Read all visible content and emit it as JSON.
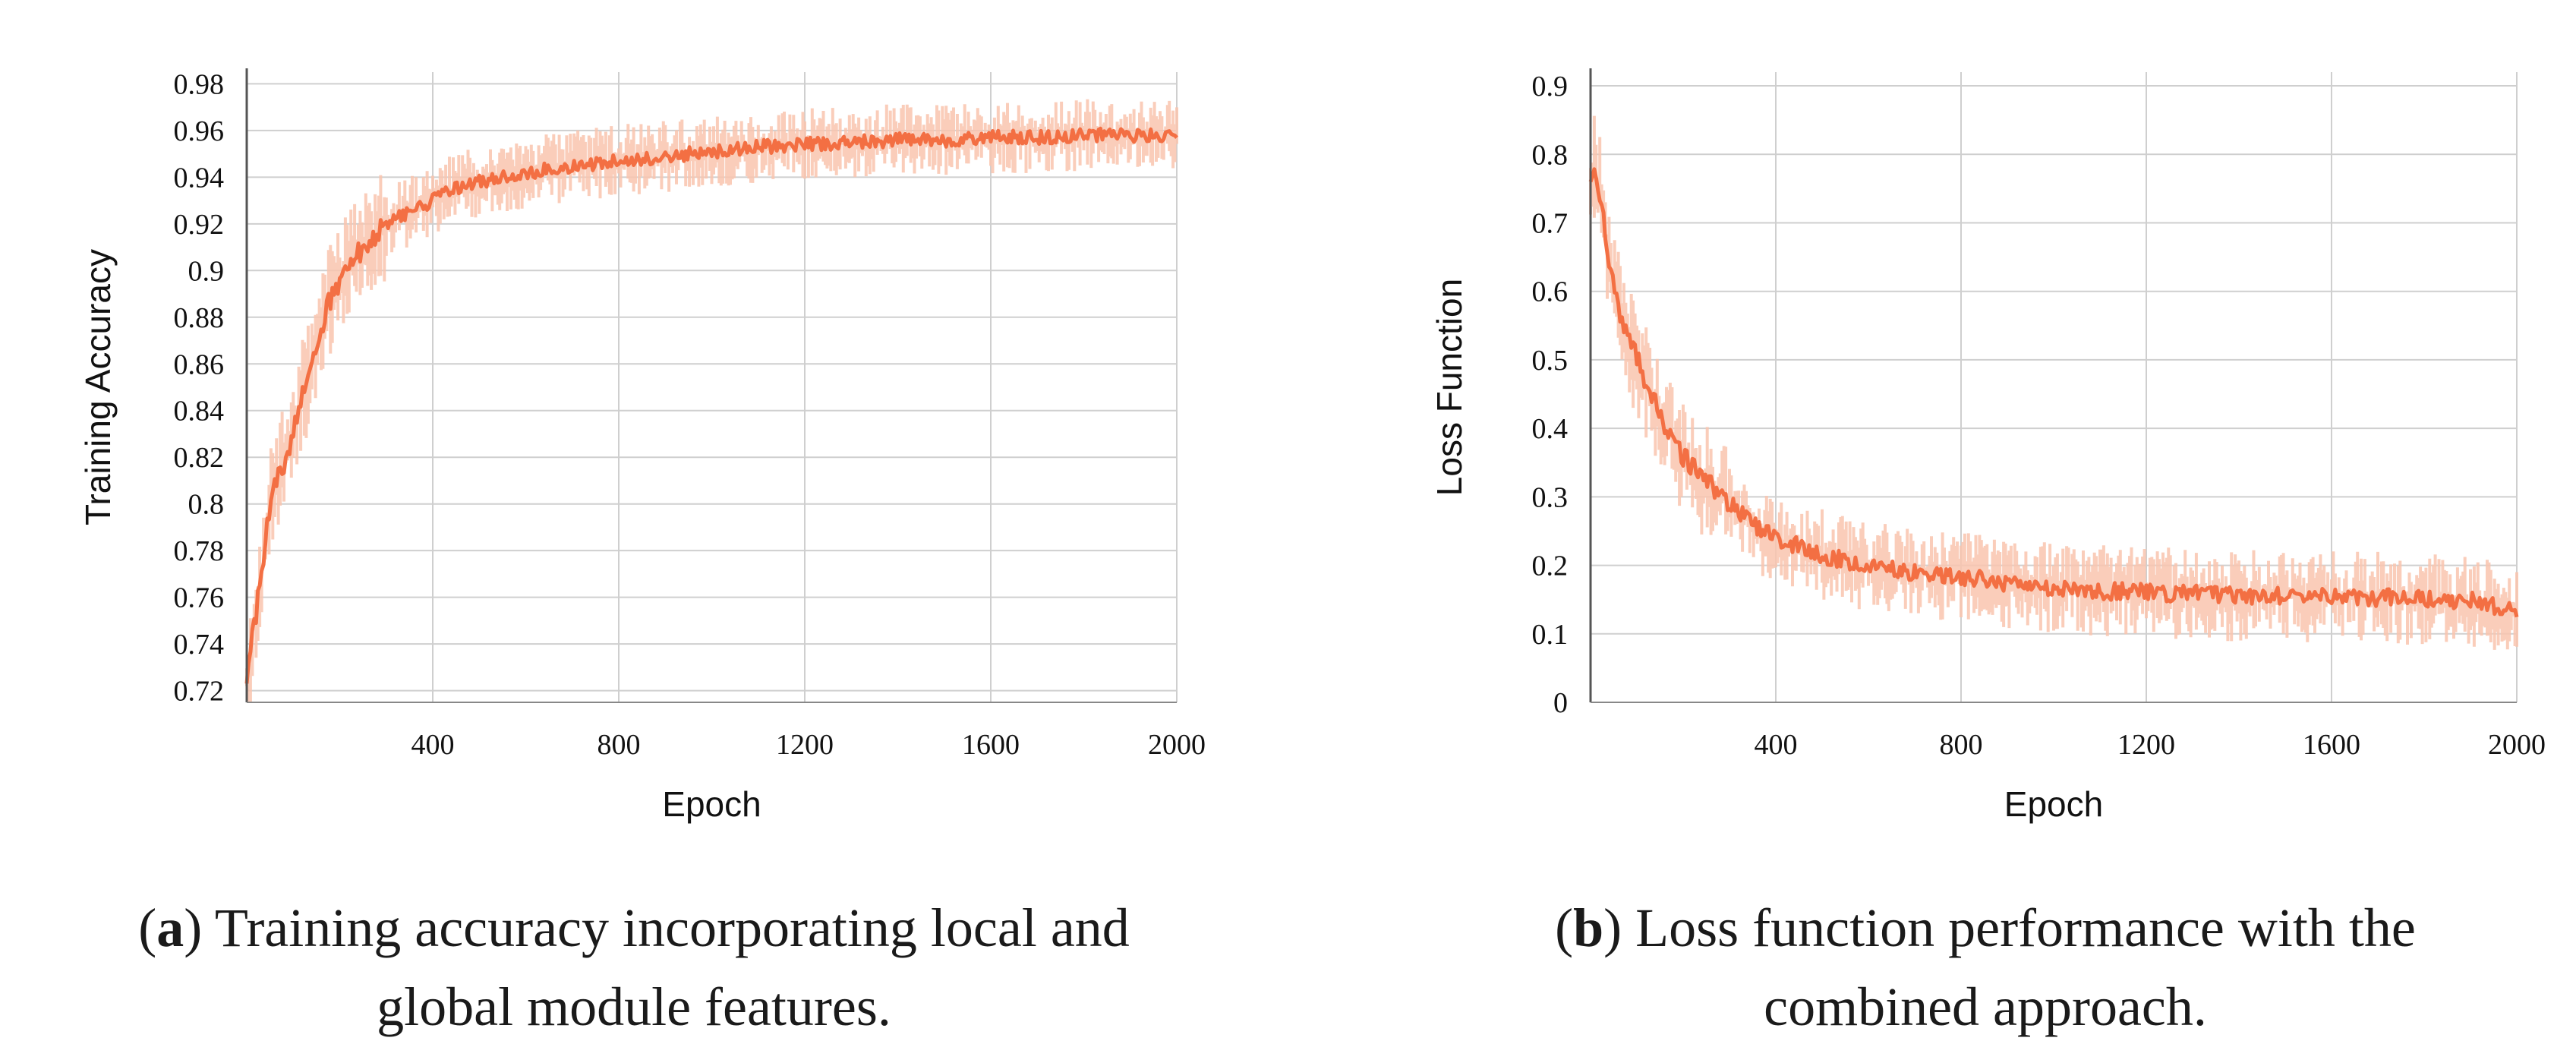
{
  "chart_data": [
    {
      "type": "line",
      "title": "",
      "xlabel": "Epoch",
      "ylabel": "Training Accuracy",
      "xlim": [
        0,
        2000
      ],
      "ylim": [
        0.715,
        0.985
      ],
      "grid": true,
      "line_color": "#f36f43",
      "band_color": "#f9c4ae",
      "x_ticks": [
        400,
        800,
        1200,
        1600,
        2000
      ],
      "x_tick_labels": [
        "400",
        "800",
        "1200",
        "1600",
        "2000"
      ],
      "y_ticks": [
        0.72,
        0.74,
        0.76,
        0.78,
        0.8,
        0.82,
        0.84,
        0.86,
        0.88,
        0.9,
        0.92,
        0.94,
        0.96,
        0.98
      ],
      "y_tick_labels": [
        "0.72",
        "0.74",
        "0.76",
        "0.78",
        "0.8",
        "0.82",
        "0.84",
        "0.86",
        "0.88",
        "0.9",
        "0.92",
        "0.94",
        "0.96",
        "0.98"
      ],
      "series": [
        {
          "name": "Training Accuracy",
          "x": [
            0,
            25,
            50,
            75,
            100,
            125,
            150,
            175,
            200,
            250,
            300,
            350,
            400,
            450,
            500,
            600,
            700,
            800,
            900,
            1000,
            1100,
            1200,
            1300,
            1400,
            1500,
            1600,
            1700,
            1800,
            1900,
            2000
          ],
          "y": [
            0.725,
            0.76,
            0.8,
            0.815,
            0.83,
            0.85,
            0.87,
            0.885,
            0.895,
            0.91,
            0.92,
            0.925,
            0.93,
            0.935,
            0.938,
            0.942,
            0.945,
            0.947,
            0.949,
            0.951,
            0.953,
            0.954,
            0.955,
            0.956,
            0.956,
            0.957,
            0.957,
            0.958,
            0.958,
            0.958
          ]
        }
      ]
    },
    {
      "type": "line",
      "title": "",
      "xlabel": "Epoch",
      "ylabel": "Loss Function",
      "xlim": [
        0,
        2000
      ],
      "ylim": [
        0,
        0.92
      ],
      "grid": true,
      "line_color": "#f36f43",
      "band_color": "#f9c4ae",
      "x_ticks": [
        400,
        800,
        1200,
        1600,
        2000
      ],
      "x_tick_labels": [
        "400",
        "800",
        "1200",
        "1600",
        "2000"
      ],
      "y_ticks": [
        0,
        0.1,
        0.2,
        0.3,
        0.4,
        0.5,
        0.6,
        0.7,
        0.8,
        0.9
      ],
      "y_tick_labels": [
        "0",
        "0.1",
        "0.2",
        "0.3",
        "0.4",
        "0.5",
        "0.6",
        "0.7",
        "0.8",
        "0.9"
      ],
      "series": [
        {
          "name": "Loss Function",
          "x": [
            0,
            10,
            25,
            50,
            75,
            100,
            150,
            200,
            250,
            300,
            350,
            400,
            500,
            600,
            700,
            800,
            900,
            1000,
            1100,
            1200,
            1300,
            1400,
            1500,
            1600,
            1700,
            1800,
            1900,
            2000
          ],
          "y": [
            0.76,
            0.79,
            0.72,
            0.6,
            0.54,
            0.5,
            0.42,
            0.36,
            0.32,
            0.29,
            0.26,
            0.24,
            0.215,
            0.2,
            0.19,
            0.182,
            0.175,
            0.168,
            0.163,
            0.16,
            0.158,
            0.156,
            0.155,
            0.154,
            0.153,
            0.15,
            0.148,
            0.135
          ]
        }
      ]
    }
  ],
  "captions": [
    {
      "label": "a",
      "text_line1": ") Training accuracy incorporating local and",
      "text_line2": "global module features."
    },
    {
      "label": "b",
      "text_line1": ") Loss function performance with the",
      "text_line2": "combined approach."
    }
  ]
}
